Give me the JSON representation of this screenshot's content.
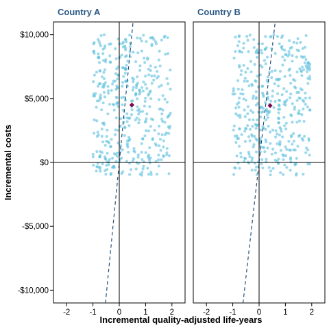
{
  "chart_data": {
    "type": "scatter",
    "ylabel": "Incremental costs",
    "xlabel": "Incremental quality-adjusted life-years",
    "xlim": [
      -2.5,
      2.5
    ],
    "ylim": [
      -11000,
      11000
    ],
    "x_ticks": [
      {
        "value": -2,
        "label": "-2"
      },
      {
        "value": -1,
        "label": "-1"
      },
      {
        "value": 0,
        "label": "0"
      },
      {
        "value": 1,
        "label": "1"
      },
      {
        "value": 2,
        "label": "2"
      }
    ],
    "y_ticks": [
      {
        "value": 10000,
        "label": "$10,000"
      },
      {
        "value": 5000,
        "label": "$5,000"
      },
      {
        "value": 0,
        "label": "$0"
      },
      {
        "value": -5000,
        "label": "-$5,000"
      },
      {
        "value": -10000,
        "label": "-$10,000"
      }
    ],
    "grid": false,
    "colors": {
      "points": "#5bc0de",
      "point_estimate": "#7b0a4e",
      "title": "#2c5a85",
      "threshold_line": "#1f4e79"
    },
    "panels": [
      {
        "title": "Country A",
        "point_estimate": {
          "x": 0.48,
          "y": 4500
        },
        "threshold_line": {
          "slope_per_qaly": 21000,
          "style": "dashed"
        },
        "sample_x_range": [
          -1.0,
          1.95
        ],
        "sample_y_range": [
          -1000,
          10000
        ],
        "sample_count": 420,
        "sample_seed": 11
      },
      {
        "title": "Country B",
        "point_estimate": {
          "x": 0.42,
          "y": 4450
        },
        "threshold_line": {
          "slope_per_qaly": 18000,
          "style": "dashed"
        },
        "sample_x_range": [
          -1.0,
          1.95
        ],
        "sample_y_range": [
          -1000,
          10000
        ],
        "sample_count": 420,
        "sample_seed": 29
      }
    ]
  }
}
